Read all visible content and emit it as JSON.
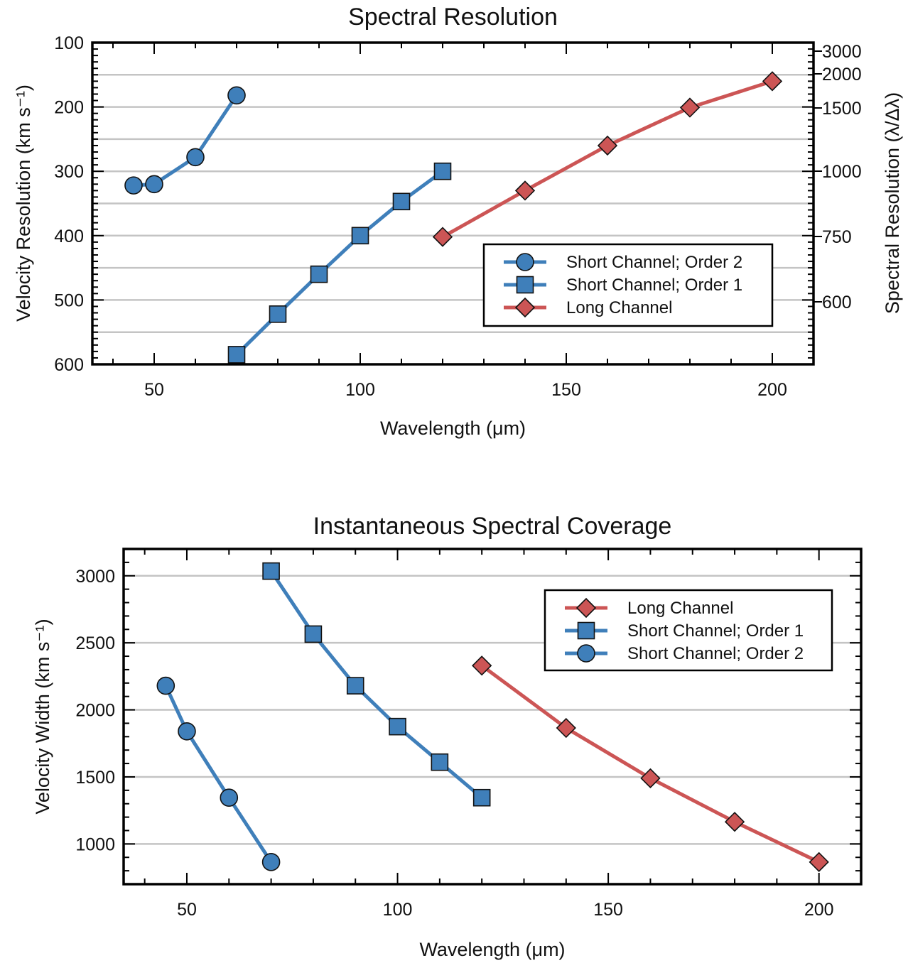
{
  "chart_data": [
    {
      "type": "line",
      "title": "Spectral Resolution",
      "xlabel": "Wavelength (μm)",
      "ylabel": "Velocity Resolution (km s⁻¹)",
      "y2label": "Spectral Resolution (λ/Δλ)",
      "xlim": [
        35,
        210
      ],
      "ylim": [
        600,
        100
      ],
      "y_inverted": true,
      "x_ticks": [
        "50",
        "100",
        "150",
        "200"
      ],
      "y_ticks": [
        "100",
        "200",
        "300",
        "400",
        "500",
        "600"
      ],
      "y2_ticks": [
        "3000",
        "2000",
        "1500",
        "1000",
        "750",
        "600"
      ],
      "grid": true,
      "legend_position": "bottom-right",
      "series": [
        {
          "name": "Short Channel; Order 2",
          "marker": "circle",
          "color": "#3f7fba",
          "x": [
            45,
            50,
            60,
            70
          ],
          "y": [
            322,
            320,
            278,
            182
          ]
        },
        {
          "name": "Short Channel; Order 1",
          "marker": "square",
          "color": "#3f7fba",
          "x": [
            70,
            80,
            90,
            100,
            110,
            120
          ],
          "y": [
            585,
            522,
            460,
            400,
            347,
            300
          ]
        },
        {
          "name": "Long Channel",
          "marker": "diamond",
          "color": "#cc5555",
          "x": [
            120,
            140,
            160,
            180,
            200
          ],
          "y": [
            402,
            330,
            260,
            201,
            160
          ]
        }
      ]
    },
    {
      "type": "line",
      "title": "Instantaneous Spectral Coverage",
      "xlabel": "Wavelength (μm)",
      "ylabel": "Velocity Width (km s⁻¹)",
      "xlim": [
        35,
        210
      ],
      "ylim": [
        700,
        3200
      ],
      "x_ticks": [
        "50",
        "100",
        "150",
        "200"
      ],
      "y_ticks": [
        "1000",
        "1500",
        "2000",
        "2500",
        "3000"
      ],
      "grid": true,
      "legend_position": "top-right",
      "series": [
        {
          "name": "Long Channel",
          "marker": "diamond",
          "color": "#cc5555",
          "x": [
            120,
            140,
            160,
            180,
            200
          ],
          "y": [
            2330,
            1865,
            1490,
            1165,
            865
          ]
        },
        {
          "name": "Short Channel; Order 1",
          "marker": "square",
          "color": "#3f7fba",
          "x": [
            70,
            80,
            90,
            100,
            110,
            120
          ],
          "y": [
            3035,
            2565,
            2180,
            1875,
            1610,
            1345
          ]
        },
        {
          "name": "Short Channel; Order 2",
          "marker": "circle",
          "color": "#3f7fba",
          "x": [
            45,
            50,
            60,
            70
          ],
          "y": [
            2180,
            1840,
            1345,
            865
          ]
        }
      ]
    }
  ]
}
